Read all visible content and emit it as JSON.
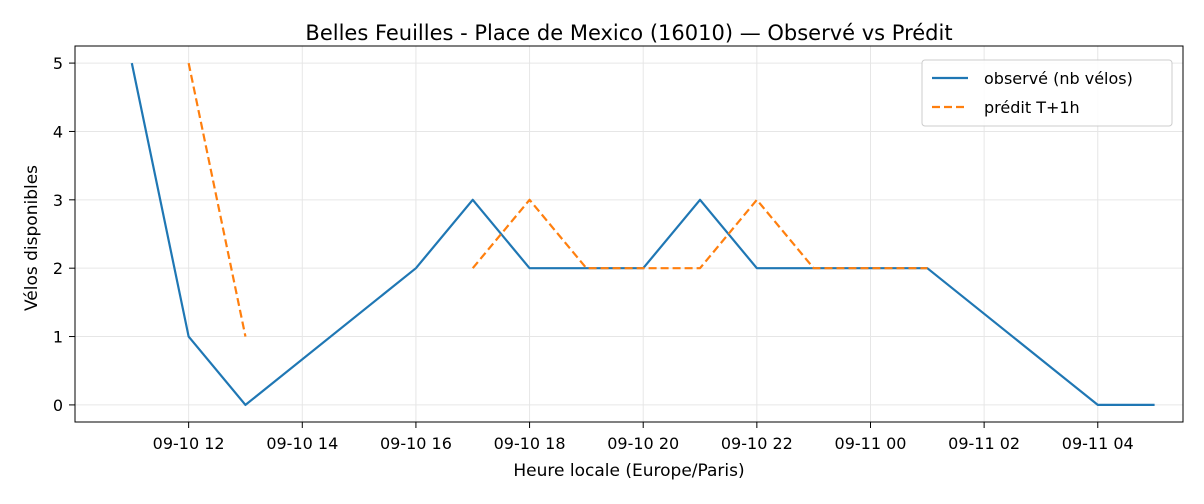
{
  "chart_data": {
    "type": "line",
    "title": "Belles Feuilles - Place de Mexico (16010) — Observé vs Prédit",
    "xlabel": "Heure locale (Europe/Paris)",
    "ylabel": "Vélos disponibles",
    "x_ticks": [
      "09-10 12",
      "09-10 14",
      "09-10 16",
      "09-10 18",
      "09-10 20",
      "09-10 22",
      "09-11 00",
      "09-11 02",
      "09-11 04"
    ],
    "y_ticks": [
      "0",
      "1",
      "2",
      "3",
      "4",
      "5"
    ],
    "xlim": [
      "2023-09-10 10:00",
      "2023-09-11 05:30"
    ],
    "ylim": [
      -0.25,
      5.25
    ],
    "grid": true,
    "legend_position": "top-right",
    "series": [
      {
        "name": "observé (nb vélos)",
        "color": "#1f77b4",
        "style": "solid",
        "points": [
          {
            "x": "2023-09-10 11:00",
            "y": 5
          },
          {
            "x": "2023-09-10 12:00",
            "y": 1
          },
          {
            "x": "2023-09-10 13:00",
            "y": 0
          },
          {
            "x": "2023-09-10 16:00",
            "y": 2
          },
          {
            "x": "2023-09-10 17:00",
            "y": 3
          },
          {
            "x": "2023-09-10 18:00",
            "y": 2
          },
          {
            "x": "2023-09-10 20:00",
            "y": 2
          },
          {
            "x": "2023-09-10 21:00",
            "y": 3
          },
          {
            "x": "2023-09-10 22:00",
            "y": 2
          },
          {
            "x": "2023-09-11 01:00",
            "y": 2
          },
          {
            "x": "2023-09-11 04:00",
            "y": 0
          },
          {
            "x": "2023-09-11 05:00",
            "y": 0
          }
        ]
      },
      {
        "name": "prédit T+1h",
        "color": "#ff7f0e",
        "style": "dashed",
        "segments": [
          [
            {
              "x": "2023-09-10 12:00",
              "y": 5
            },
            {
              "x": "2023-09-10 13:00",
              "y": 1
            }
          ],
          [
            {
              "x": "2023-09-10 17:00",
              "y": 2
            },
            {
              "x": "2023-09-10 18:00",
              "y": 3
            },
            {
              "x": "2023-09-10 19:00",
              "y": 2
            },
            {
              "x": "2023-09-10 21:00",
              "y": 2
            },
            {
              "x": "2023-09-10 22:00",
              "y": 3
            },
            {
              "x": "2023-09-10 23:00",
              "y": 2
            },
            {
              "x": "2023-09-11 01:00",
              "y": 2
            }
          ]
        ]
      }
    ]
  }
}
